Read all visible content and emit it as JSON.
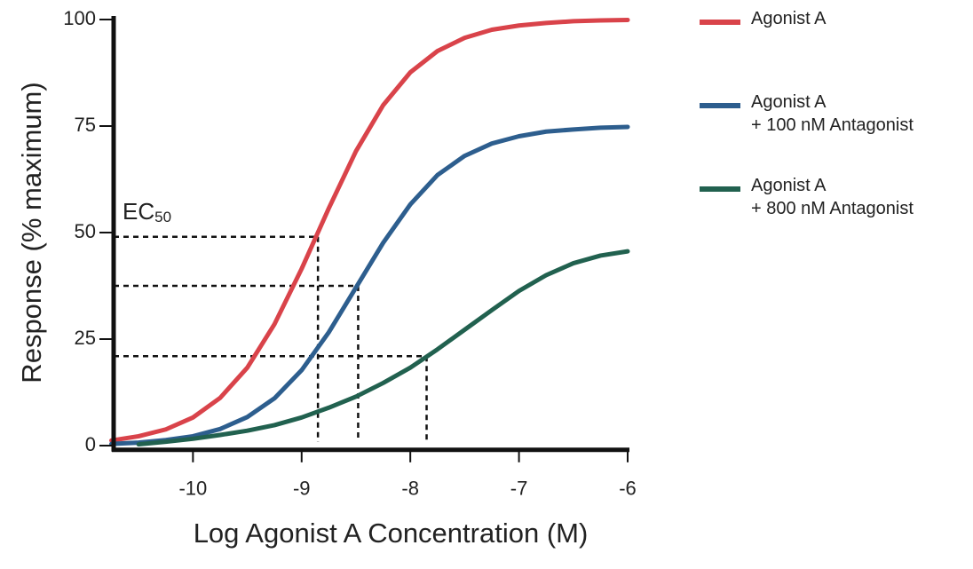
{
  "chart_data": {
    "type": "line",
    "x_label": "Log Agonist A Concentration (M)",
    "y_label": "Response (% maximum)",
    "x": [
      -10.75,
      -10.5,
      -10.25,
      -10,
      -9.75,
      -9.5,
      -9.25,
      -9,
      -8.75,
      -8.5,
      -8.25,
      -8,
      -7.75,
      -7.5,
      -7.25,
      -7,
      -6.75,
      -6.5,
      -6.25,
      -6
    ],
    "series": [
      {
        "name": "Agonist A",
        "color": "#d9434a",
        "values": [
          1.2,
          2.2,
          3.8,
          6.6,
          11.2,
          18.3,
          28.5,
          41.5,
          55.7,
          69.1,
          79.9,
          87.6,
          92.6,
          95.7,
          97.6,
          98.6,
          99.2,
          99.6,
          99.8,
          99.9
        ]
      },
      {
        "name": "Agonist A\n+ 100 nM Antagonist",
        "color": "#2d5e8e",
        "values": [
          0.4,
          0.7,
          1.3,
          2.2,
          3.9,
          6.7,
          11.1,
          17.7,
          26.6,
          37.1,
          47.6,
          56.6,
          63.5,
          68.0,
          70.9,
          72.6,
          73.7,
          74.2,
          74.6,
          74.8
        ]
      },
      {
        "name": "Agonist A\n+ 800 nM Antagonist",
        "color": "#21614f",
        "values": [
          null,
          0.3,
          0.9,
          1.6,
          2.5,
          3.5,
          4.8,
          6.6,
          8.9,
          11.5,
          14.7,
          18.3,
          22.6,
          27.2,
          31.8,
          36.3,
          40.0,
          42.8,
          44.6,
          45.6
        ]
      }
    ],
    "ec50_annotation": {
      "text": "EC",
      "subscript": "50"
    },
    "ec50_points": [
      {
        "x": -8.85,
        "y": 49
      },
      {
        "x": -8.48,
        "y": 37.5
      },
      {
        "x": -7.85,
        "y": 21
      }
    ],
    "xlim": [
      -10.73,
      -6
    ],
    "ylim": [
      -1,
      100
    ],
    "xticks": [
      -10,
      -9,
      -8,
      -7,
      -6
    ],
    "yticks": [
      0,
      25,
      50,
      75,
      100
    ],
    "legend": "right"
  }
}
